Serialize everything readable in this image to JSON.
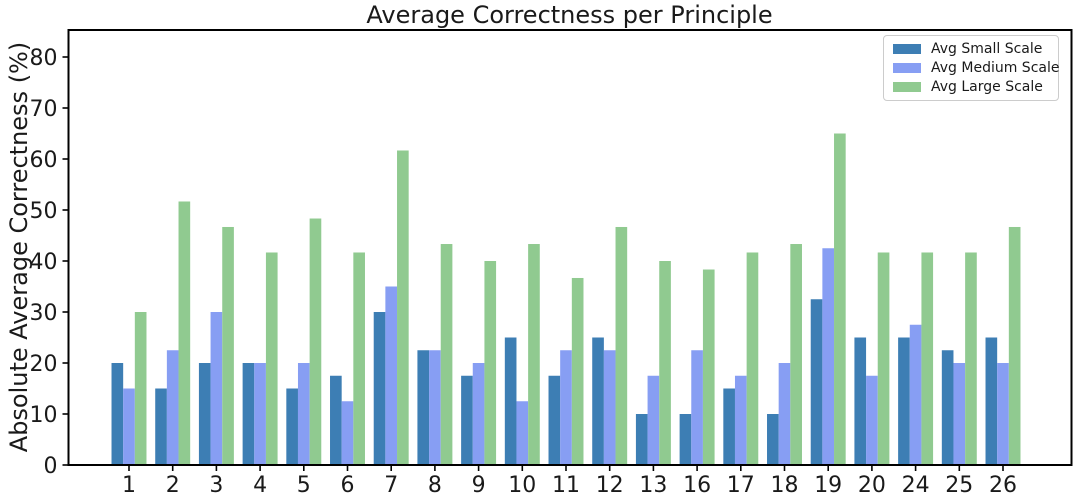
{
  "chart_data": {
    "type": "bar",
    "title": "Average Correctness per Principle",
    "xlabel": "",
    "ylabel": "Absolute Average Correctness (%)",
    "categories": [
      "1",
      "2",
      "3",
      "4",
      "5",
      "6",
      "7",
      "8",
      "9",
      "10",
      "11",
      "12",
      "13",
      "16",
      "17",
      "18",
      "19",
      "20",
      "24",
      "25",
      "26"
    ],
    "series": [
      {
        "name": "Avg Small Scale",
        "color": "#3d7eb4",
        "values": [
          20,
          15,
          20,
          20,
          15,
          17.5,
          30,
          22.5,
          17.5,
          25,
          17.5,
          25,
          10,
          10,
          15,
          10,
          32.5,
          25,
          25,
          22.5,
          25
        ]
      },
      {
        "name": "Avg Medium Scale",
        "color": "#879ef3",
        "values": [
          15,
          22.5,
          30,
          20,
          20,
          12.5,
          35,
          22.5,
          20,
          12.5,
          22.5,
          22.5,
          17.5,
          22.5,
          17.5,
          20,
          42.5,
          17.5,
          27.5,
          20,
          20
        ]
      },
      {
        "name": "Avg Large Scale",
        "color": "#90ca90",
        "values": [
          30,
          51.67,
          46.67,
          41.67,
          48.33,
          41.67,
          61.67,
          43.33,
          40,
          43.33,
          36.67,
          46.67,
          40,
          38.33,
          41.67,
          43.33,
          65,
          41.67,
          41.67,
          41.67,
          46.67
        ]
      }
    ],
    "ylim": [
      0,
      85.3
    ],
    "yticks": [
      0,
      10,
      20,
      30,
      40,
      50,
      60,
      70,
      80
    ],
    "grid": false,
    "legend_position": "upper right",
    "axis_color": "#000000",
    "text_color": "#1a1a1a"
  }
}
